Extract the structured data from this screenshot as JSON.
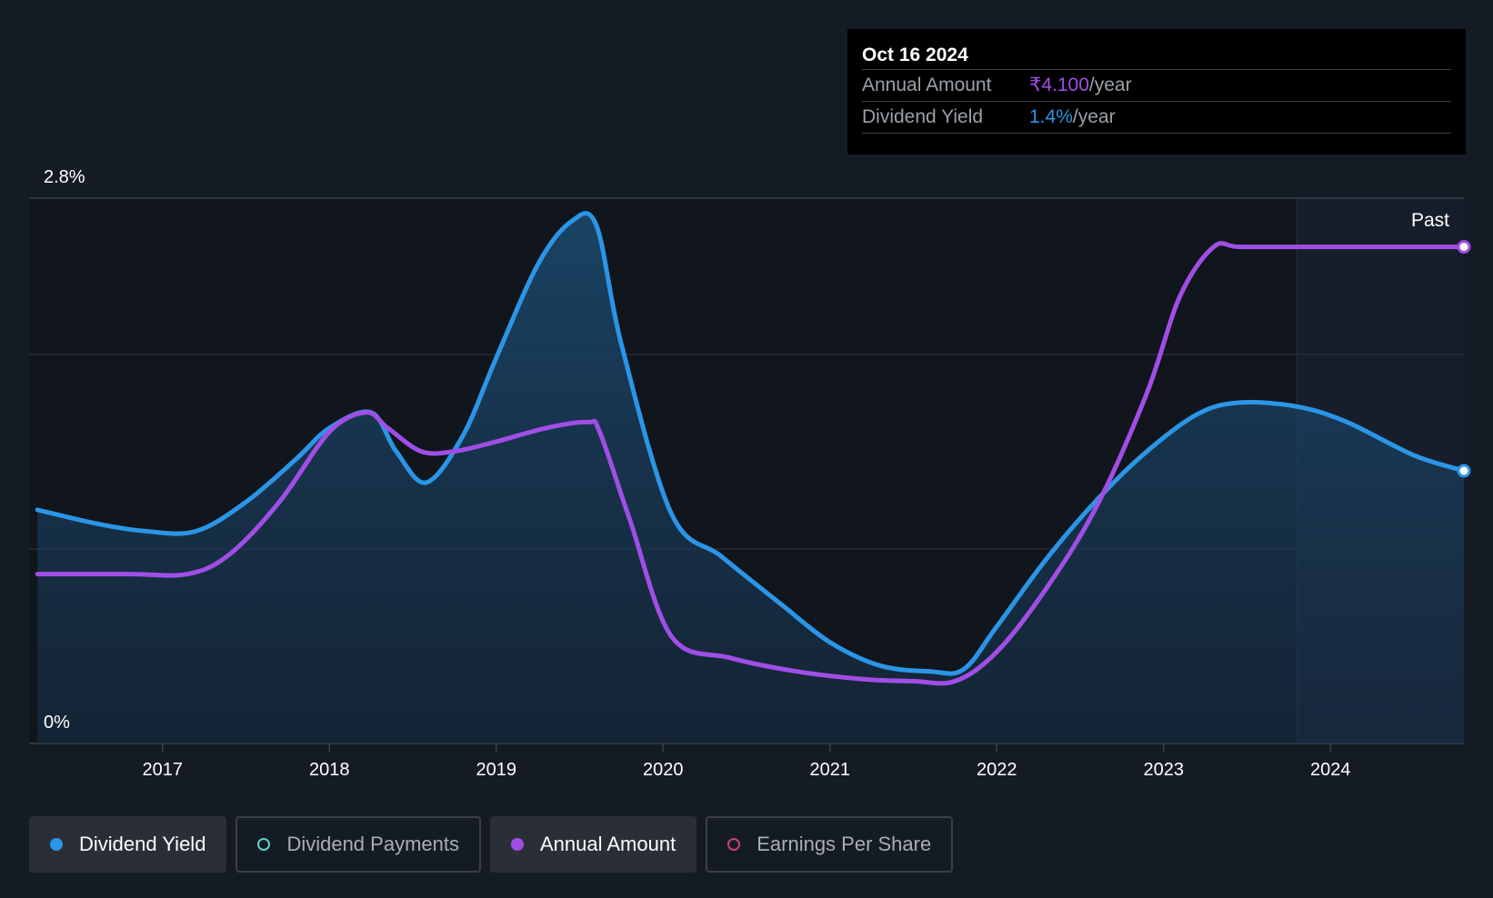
{
  "tooltip": {
    "date": "Oct 16 2024",
    "rows": [
      {
        "label": "Annual Amount",
        "value": "₹4.100",
        "unit": "/year",
        "color": "#a04ee6"
      },
      {
        "label": "Dividend Yield",
        "value": "1.4%",
        "unit": "/year",
        "color": "#2b95e6"
      }
    ]
  },
  "legend": [
    {
      "label": "Dividend Yield",
      "color": "#2b95e6",
      "active": true,
      "filled": true
    },
    {
      "label": "Dividend Payments",
      "color": "#5fd4c0",
      "active": false,
      "filled": false
    },
    {
      "label": "Annual Amount",
      "color": "#a04ee6",
      "active": true,
      "filled": true
    },
    {
      "label": "Earnings Per Share",
      "color": "#c8407a",
      "active": false,
      "filled": false
    }
  ],
  "chart_data": {
    "type": "area",
    "past_label": "Past",
    "y_top_label": "2.8%",
    "y_bottom_label": "0%",
    "xlim": [
      2016.2,
      2024.8
    ],
    "ylim": [
      0,
      2.8
    ],
    "forecast_start": 2023.8,
    "x_ticks": [
      "2017",
      "2018",
      "2019",
      "2020",
      "2021",
      "2022",
      "2023",
      "2024"
    ],
    "series": [
      {
        "name": "Dividend Yield",
        "color": "#2b95e6",
        "area": true,
        "x": [
          2016.25,
          2016.6,
          2016.9,
          2017.2,
          2017.5,
          2017.8,
          2018.0,
          2018.25,
          2018.4,
          2018.58,
          2018.8,
          2019.0,
          2019.25,
          2019.45,
          2019.6,
          2019.75,
          2020.05,
          2020.35,
          2020.7,
          2021.0,
          2021.3,
          2021.6,
          2021.8,
          2022.0,
          2022.3,
          2022.6,
          2022.9,
          2023.2,
          2023.45,
          2023.8,
          2024.1,
          2024.5,
          2024.8
        ],
        "y": [
          1.2,
          1.13,
          1.09,
          1.09,
          1.24,
          1.46,
          1.62,
          1.7,
          1.5,
          1.34,
          1.58,
          1.98,
          2.46,
          2.68,
          2.66,
          2.05,
          1.18,
          0.96,
          0.72,
          0.52,
          0.4,
          0.37,
          0.38,
          0.6,
          0.95,
          1.25,
          1.5,
          1.69,
          1.75,
          1.73,
          1.65,
          1.48,
          1.4
        ]
      },
      {
        "name": "Annual Amount",
        "color": "#a04ee6",
        "area": false,
        "x": [
          2016.25,
          2016.8,
          2017.15,
          2017.4,
          2017.7,
          2018.0,
          2018.22,
          2018.35,
          2018.55,
          2018.75,
          2019.0,
          2019.3,
          2019.55,
          2019.62,
          2019.8,
          2020.05,
          2020.4,
          2020.8,
          2021.2,
          2021.5,
          2021.75,
          2022.0,
          2022.3,
          2022.6,
          2022.9,
          2023.1,
          2023.3,
          2023.45,
          2023.8,
          2024.3,
          2024.8
        ],
        "y": [
          0.87,
          0.87,
          0.87,
          0.97,
          1.24,
          1.6,
          1.7,
          1.62,
          1.5,
          1.5,
          1.55,
          1.62,
          1.65,
          1.6,
          1.15,
          0.55,
          0.44,
          0.37,
          0.33,
          0.32,
          0.32,
          0.47,
          0.8,
          1.22,
          1.8,
          2.3,
          2.55,
          2.55,
          2.55,
          2.55,
          2.55
        ]
      }
    ]
  }
}
